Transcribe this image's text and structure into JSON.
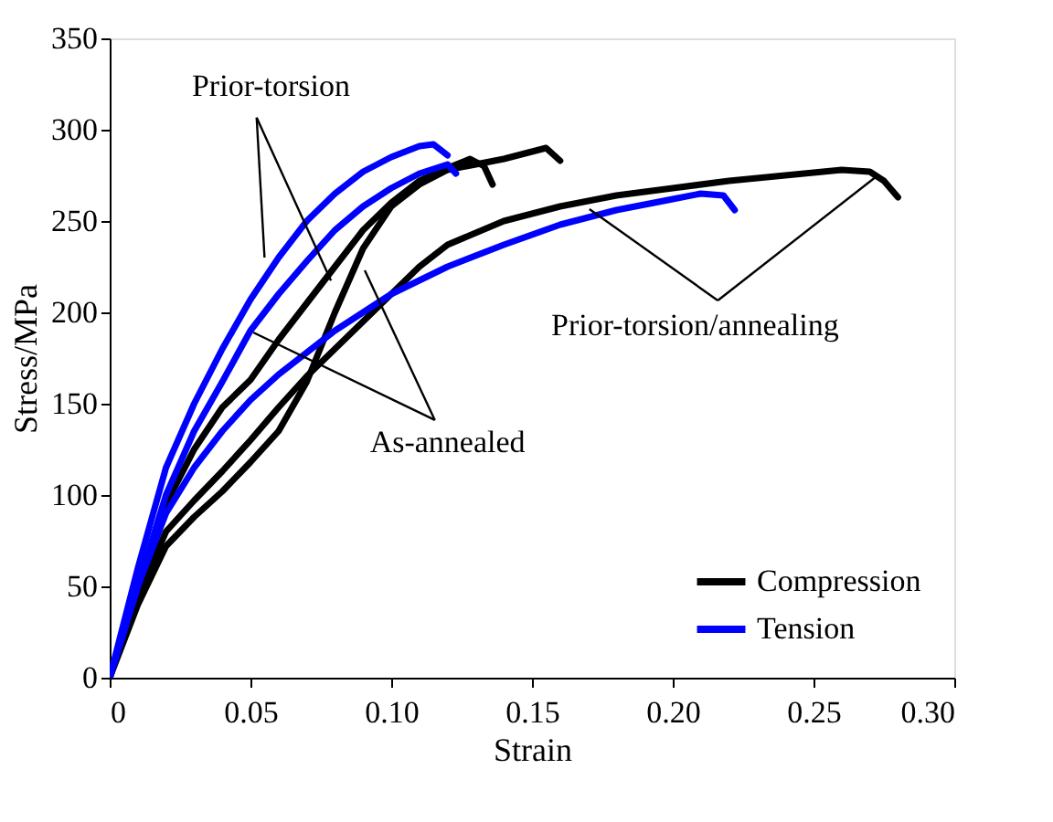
{
  "chart_data": {
    "type": "line",
    "xlabel": "Strain",
    "ylabel": "Stress/MPa",
    "xlim": [
      0,
      0.3
    ],
    "ylim": [
      0,
      350
    ],
    "xticks": [
      {
        "value": 0,
        "label": "0"
      },
      {
        "value": 0.05,
        "label": "0.05"
      },
      {
        "value": 0.1,
        "label": "0.10"
      },
      {
        "value": 0.15,
        "label": "0.15"
      },
      {
        "value": 0.2,
        "label": "0.20"
      },
      {
        "value": 0.25,
        "label": "0.25"
      },
      {
        "value": 0.3,
        "label": "0.30"
      }
    ],
    "yticks": [
      0,
      50,
      100,
      150,
      200,
      250,
      300,
      350
    ],
    "grid": false,
    "legend": "bottom right",
    "line_style": "solid",
    "marker": "none",
    "annotations": [
      {
        "text": "Prior-torsion",
        "x": 0.055,
        "y": 230
      },
      {
        "text": "As-annealed",
        "x": 0.051,
        "y": 189
      },
      {
        "text": "Prior-torsion/annealing",
        "x": 0.272,
        "y": 274
      }
    ],
    "series": [
      {
        "name": "Compression",
        "color": "#000000",
        "x": [
          0,
          0.01,
          0.02,
          0.03,
          0.04,
          0.05,
          0.06,
          0.07,
          0.08,
          0.09,
          0.1,
          0.11,
          0.12,
          0.128,
          0.133,
          0.136
        ],
        "values": [
          0,
          45,
          95,
          125,
          148,
          163,
          185,
          205,
          225,
          245,
          260,
          272,
          279,
          284,
          280,
          270
        ]
      },
      {
        "color": "#000000",
        "x": [
          0,
          0.01,
          0.02,
          0.03,
          0.04,
          0.05,
          0.06,
          0.07,
          0.08,
          0.09,
          0.1,
          0.11,
          0.12,
          0.13,
          0.14,
          0.15,
          0.155,
          0.16
        ],
        "values": [
          0,
          40,
          72,
          88,
          102,
          118,
          135,
          162,
          200,
          235,
          258,
          270,
          278,
          281,
          284,
          288,
          290,
          283
        ]
      },
      {
        "color": "#000000",
        "x": [
          0,
          0.01,
          0.02,
          0.03,
          0.04,
          0.05,
          0.06,
          0.07,
          0.08,
          0.09,
          0.1,
          0.11,
          0.12,
          0.14,
          0.16,
          0.18,
          0.2,
          0.22,
          0.24,
          0.26,
          0.27,
          0.275,
          0.28
        ],
        "values": [
          0,
          45,
          80,
          97,
          113,
          130,
          148,
          165,
          180,
          195,
          210,
          225,
          237,
          250,
          258,
          264,
          268,
          272,
          275,
          278,
          277,
          272,
          263
        ]
      },
      {
        "name": "Tension",
        "color": "#0000ff",
        "x": [
          0,
          0.01,
          0.02,
          0.03,
          0.04,
          0.05,
          0.06,
          0.07,
          0.08,
          0.09,
          0.1,
          0.11,
          0.115,
          0.12
        ],
        "values": [
          0,
          60,
          115,
          150,
          180,
          207,
          230,
          250,
          265,
          277,
          285,
          291,
          292,
          286
        ]
      },
      {
        "color": "#0000ff",
        "x": [
          0,
          0.01,
          0.02,
          0.03,
          0.04,
          0.05,
          0.06,
          0.07,
          0.08,
          0.09,
          0.1,
          0.11,
          0.12,
          0.123
        ],
        "values": [
          0,
          50,
          100,
          135,
          162,
          190,
          210,
          228,
          245,
          258,
          268,
          276,
          281,
          276
        ]
      },
      {
        "color": "#0000ff",
        "x": [
          0,
          0.01,
          0.02,
          0.03,
          0.04,
          0.05,
          0.06,
          0.07,
          0.08,
          0.09,
          0.1,
          0.12,
          0.14,
          0.16,
          0.18,
          0.2,
          0.21,
          0.218,
          0.222
        ],
        "values": [
          0,
          50,
          90,
          115,
          135,
          152,
          166,
          178,
          190,
          200,
          210,
          225,
          237,
          248,
          256,
          262,
          265,
          264,
          256
        ]
      }
    ]
  }
}
